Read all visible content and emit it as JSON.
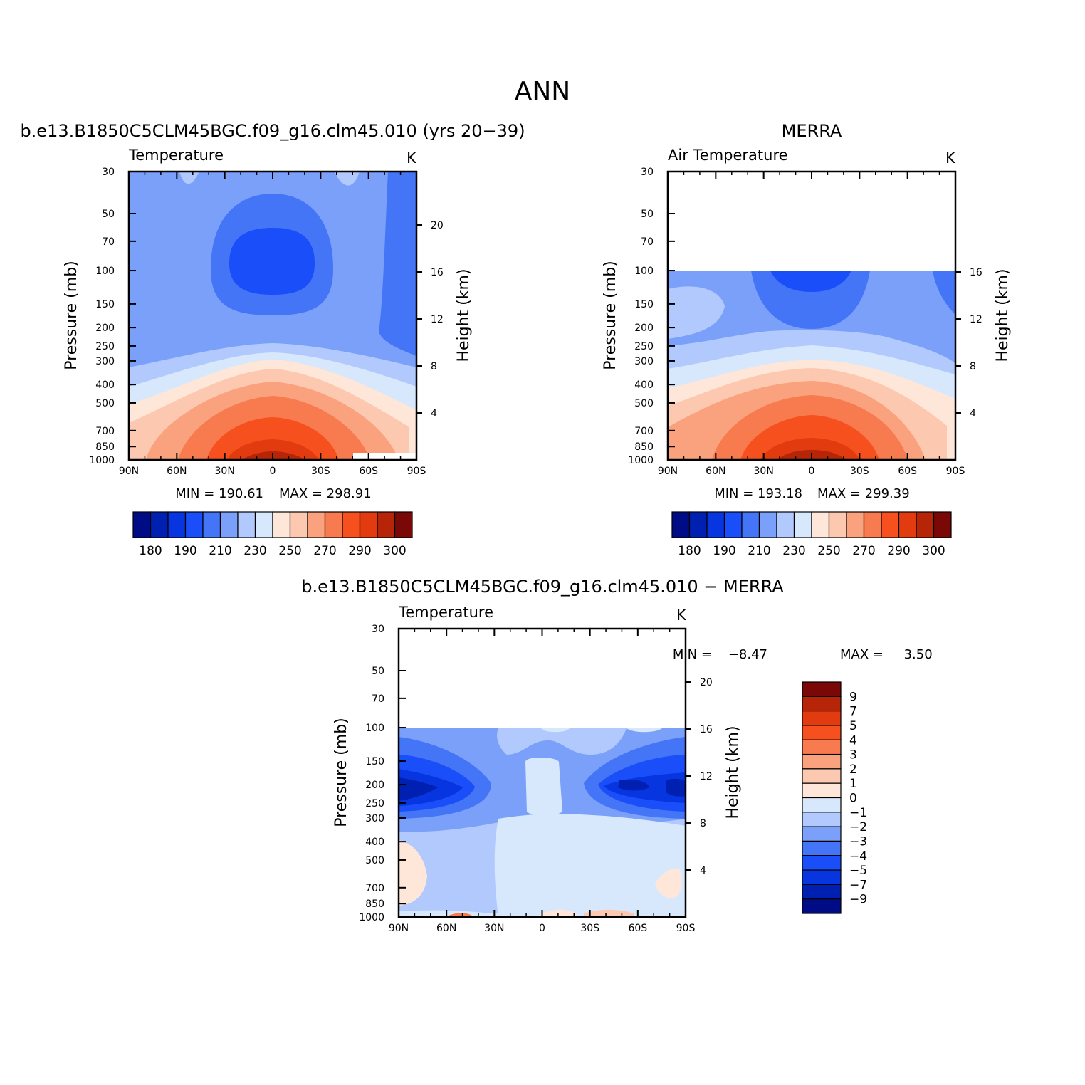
{
  "figure": {
    "title": "ANN"
  },
  "chart_data": [
    {
      "type": "heatmap",
      "case_title": "b.e13.B1850C5CLM45BGC.f09_g16.clm45.010 (yrs 20−39)",
      "variable": "Temperature",
      "units": "K",
      "ylabel": "Pressure (mb)",
      "ylabel_right": "Height (km)",
      "x_ticks": [
        "90N",
        "60N",
        "30N",
        "0",
        "30S",
        "60S",
        "90S"
      ],
      "y_ticks": [
        "30",
        "50",
        "70",
        "100",
        "150",
        "200",
        "250",
        "300",
        "400",
        "500",
        "700",
        "850",
        "1000"
      ],
      "y_ticks_right": [
        "20",
        "16",
        "12",
        "8",
        "4"
      ],
      "xlim": [
        90,
        -90
      ],
      "ylim": [
        1000,
        30
      ],
      "y_scale": "log",
      "min_label": "MIN = 190.61",
      "max_label": "MAX = 298.91",
      "colorbar": {
        "orientation": "horizontal",
        "labels": [
          "180",
          "190",
          "210",
          "230",
          "250",
          "270",
          "290",
          "300"
        ],
        "colors": [
          "#000b86",
          "#0020b2",
          "#0735e0",
          "#1a4ef8",
          "#4475f7",
          "#7aa0f9",
          "#b1c9fc",
          "#d7e8fc",
          "#fee7d9",
          "#fcc9b0",
          "#faa27e",
          "#f87a4f",
          "#f6501e",
          "#e23b10",
          "#b62508",
          "#7a0806"
        ]
      }
    },
    {
      "type": "heatmap",
      "case_title": "MERRA",
      "variable": "Air Temperature",
      "units": "K",
      "ylabel": "Pressure (mb)",
      "ylabel_right": "Height (km)",
      "x_ticks": [
        "90N",
        "60N",
        "30N",
        "0",
        "30S",
        "60S",
        "90S"
      ],
      "y_ticks": [
        "30",
        "50",
        "70",
        "100",
        "150",
        "200",
        "250",
        "300",
        "400",
        "500",
        "700",
        "850",
        "1000"
      ],
      "y_ticks_right": [
        "16",
        "12",
        "8",
        "4"
      ],
      "xlim": [
        90,
        -90
      ],
      "ylim": [
        1000,
        30
      ],
      "y_scale": "log",
      "min_label": "MIN = 193.18",
      "max_label": "MAX = 299.39",
      "colorbar": {
        "orientation": "horizontal",
        "labels": [
          "180",
          "190",
          "210",
          "230",
          "250",
          "270",
          "290",
          "300"
        ],
        "colors": [
          "#000b86",
          "#0020b2",
          "#0735e0",
          "#1a4ef8",
          "#4475f7",
          "#7aa0f9",
          "#b1c9fc",
          "#d7e8fc",
          "#fee7d9",
          "#fcc9b0",
          "#faa27e",
          "#f87a4f",
          "#f6501e",
          "#e23b10",
          "#b62508",
          "#7a0806"
        ]
      }
    },
    {
      "type": "heatmap",
      "case_title": "b.e13.B1850C5CLM45BGC.f09_g16.clm45.010 − MERRA",
      "variable": "Temperature",
      "units": "K",
      "ylabel": "Pressure (mb)",
      "ylabel_right": "Height (km)",
      "x_ticks": [
        "90N",
        "60N",
        "30N",
        "0",
        "30S",
        "60S",
        "90S"
      ],
      "y_ticks": [
        "30",
        "50",
        "70",
        "100",
        "150",
        "200",
        "250",
        "300",
        "400",
        "500",
        "700",
        "850",
        "1000"
      ],
      "y_ticks_right": [
        "20",
        "16",
        "12",
        "8",
        "4"
      ],
      "xlim": [
        90,
        -90
      ],
      "ylim": [
        1000,
        30
      ],
      "y_scale": "log",
      "min_label": "MIN =    −8.47",
      "max_label": "MAX =     3.50",
      "colorbar": {
        "orientation": "vertical",
        "labels": [
          "9",
          "7",
          "5",
          "4",
          "3",
          "2",
          "1",
          "0",
          "−1",
          "−2",
          "−3",
          "−4",
          "−5",
          "−7",
          "−9"
        ],
        "colors": [
          "#7a0806",
          "#b62508",
          "#e23b10",
          "#f6501e",
          "#f87a4f",
          "#faa27e",
          "#fcc9b0",
          "#fee7d9",
          "#d7e8fc",
          "#b1c9fc",
          "#7aa0f9",
          "#4475f7",
          "#1a4ef8",
          "#0735e0",
          "#0020b2",
          "#000b86"
        ]
      }
    }
  ]
}
